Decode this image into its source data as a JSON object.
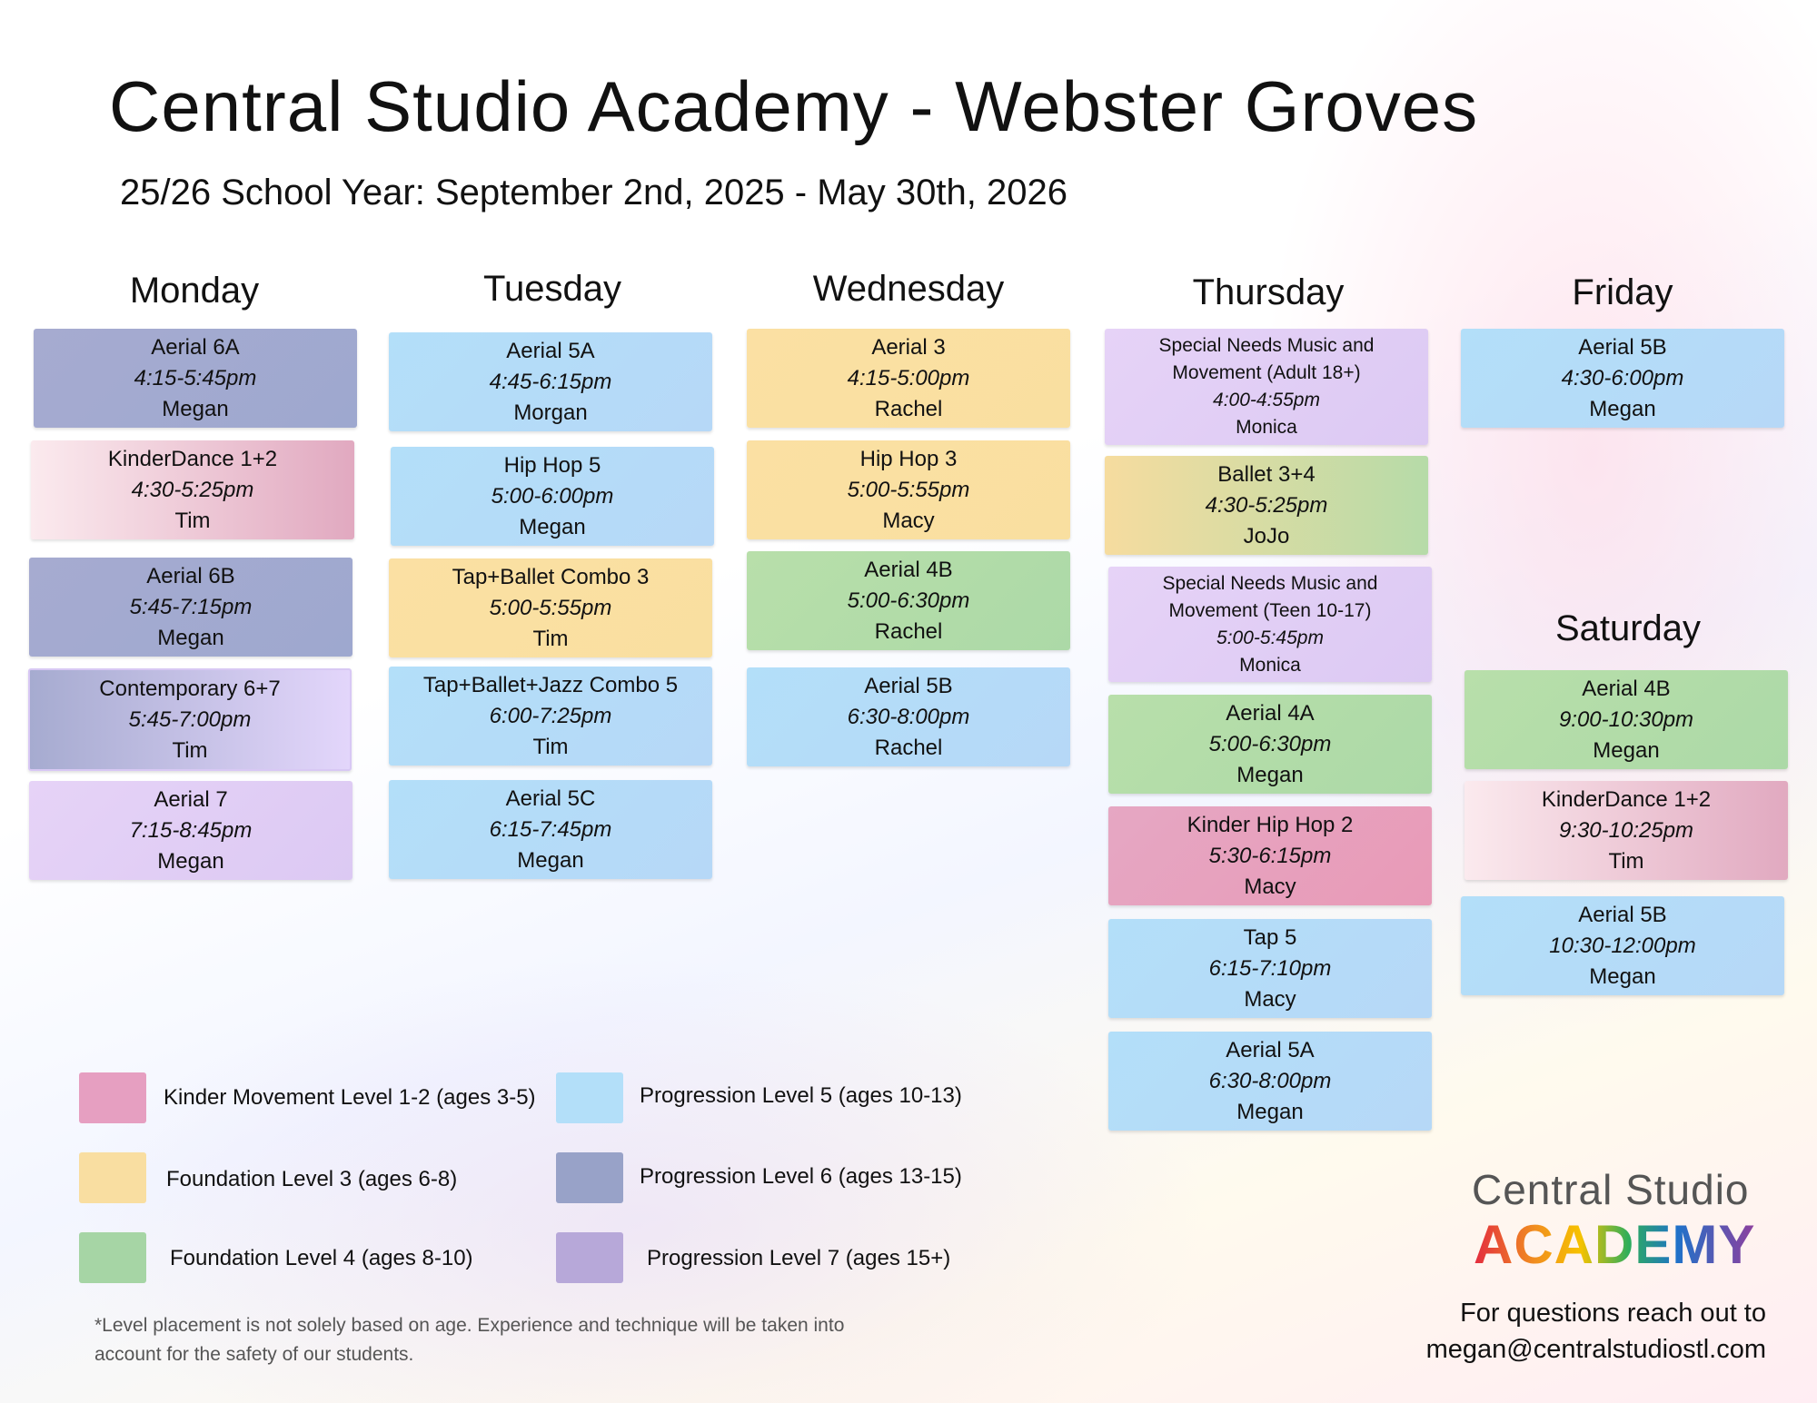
{
  "header": {
    "title": "Central Studio Academy - Webster Groves",
    "subtitle": "25/26 School Year: September 2nd, 2025 - May 30th, 2026"
  },
  "days": {
    "monday": "Monday",
    "tuesday": "Tuesday",
    "wednesday": "Wednesday",
    "thursday": "Thursday",
    "friday": "Friday",
    "saturday": "Saturday"
  },
  "classes": {
    "monday": [
      {
        "name": "Aerial 6A",
        "time": "4:15-5:45pm",
        "teacher": "Megan"
      },
      {
        "name": "KinderDance 1+2",
        "time": "4:30-5:25pm",
        "teacher": "Tim"
      },
      {
        "name": "Aerial 6B",
        "time": "5:45-7:15pm",
        "teacher": "Megan"
      },
      {
        "name": "Contemporary 6+7",
        "time": "5:45-7:00pm",
        "teacher": "Tim"
      },
      {
        "name": "Aerial 7",
        "time": "7:15-8:45pm",
        "teacher": "Megan"
      }
    ],
    "tuesday": [
      {
        "name": "Aerial 5A",
        "time": "4:45-6:15pm",
        "teacher": "Morgan"
      },
      {
        "name": "Hip Hop 5",
        "time": "5:00-6:00pm",
        "teacher": "Megan"
      },
      {
        "name": "Tap+Ballet Combo 3",
        "time": "5:00-5:55pm",
        "teacher": "Tim"
      },
      {
        "name": "Tap+Ballet+Jazz Combo 5",
        "time": "6:00-7:25pm",
        "teacher": "Tim"
      },
      {
        "name": "Aerial 5C",
        "time": "6:15-7:45pm",
        "teacher": "Megan"
      }
    ],
    "wednesday": [
      {
        "name": "Aerial 3",
        "time": "4:15-5:00pm",
        "teacher": "Rachel"
      },
      {
        "name": "Hip Hop 3",
        "time": "5:00-5:55pm",
        "teacher": "Macy"
      },
      {
        "name": "Aerial 4B",
        "time": "5:00-6:30pm",
        "teacher": "Rachel"
      },
      {
        "name": "Aerial 5B",
        "time": "6:30-8:00pm",
        "teacher": "Rachel"
      }
    ],
    "thursday": [
      {
        "name": "Special Needs Music and Movement (Adult 18+)",
        "time": "4:00-4:55pm",
        "teacher": "Monica"
      },
      {
        "name": "Ballet 3+4",
        "time": "4:30-5:25pm",
        "teacher": "JoJo"
      },
      {
        "name": "Special Needs Music and Movement (Teen 10-17)",
        "time": "5:00-5:45pm",
        "teacher": "Monica"
      },
      {
        "name": "Aerial 4A",
        "time": "5:00-6:30pm",
        "teacher": "Megan"
      },
      {
        "name": "Kinder Hip Hop 2",
        "time": "5:30-6:15pm",
        "teacher": "Macy"
      },
      {
        "name": "Tap 5",
        "time": "6:15-7:10pm",
        "teacher": "Macy"
      },
      {
        "name": "Aerial 5A",
        "time": "6:30-8:00pm",
        "teacher": "Megan"
      }
    ],
    "friday": [
      {
        "name": "Aerial 5B",
        "time": "4:30-6:00pm",
        "teacher": "Megan"
      }
    ],
    "saturday": [
      {
        "name": "Aerial 4B",
        "time": "9:00-10:30pm",
        "teacher": "Megan"
      },
      {
        "name": "KinderDance 1+2",
        "time": "9:30-10:25pm",
        "teacher": "Tim"
      },
      {
        "name": "Aerial 5B",
        "time": "10:30-12:00pm",
        "teacher": "Megan"
      }
    ]
  },
  "legend": [
    {
      "label": "Kinder Movement Level 1-2 (ages 3-5)",
      "color": "#e69fc1"
    },
    {
      "label": "Foundation Level 3 (ages 6-8)",
      "color": "#f9dea1"
    },
    {
      "label": "Foundation Level 4 (ages 8-10)",
      "color": "#a6d5a5"
    },
    {
      "label": "Progression Level 5 (ages 10-13)",
      "color": "#b3dff9"
    },
    {
      "label": "Progression Level 6 (ages 13-15)",
      "color": "#98a2c8"
    },
    {
      "label": "Progression Level 7 (ages 15+)",
      "color": "#b7a8d9"
    }
  ],
  "note": "*Level placement is not solely based on age. Experience and technique will be taken into account for the safety of our students.",
  "logo": {
    "top": "Central Studio",
    "bottom": "ACADEMY"
  },
  "contact": {
    "line1": "For questions reach out to",
    "line2": "megan@centralstudiostl.com"
  }
}
